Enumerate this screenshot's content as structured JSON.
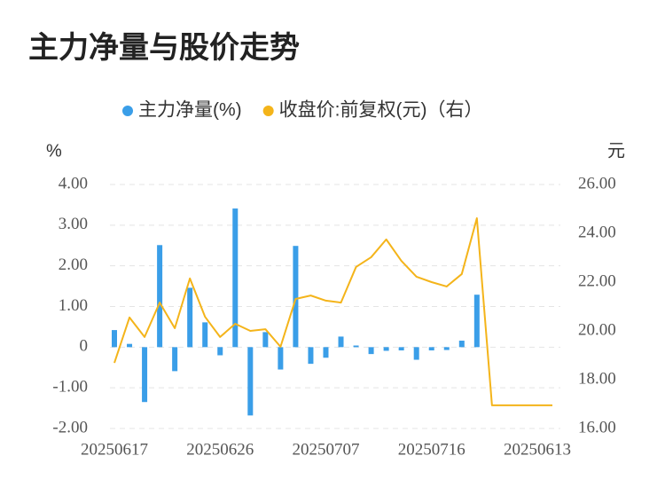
{
  "chart_data": {
    "type": "bar",
    "title": "主力净量与股价走势",
    "ylabel": "%",
    "y2label": "元",
    "categories": [
      "20250617",
      null,
      null,
      null,
      null,
      null,
      null,
      "20250626",
      null,
      null,
      null,
      null,
      null,
      null,
      "20250707",
      null,
      null,
      null,
      null,
      null,
      null,
      "20250716",
      null,
      null,
      null,
      null,
      null,
      null,
      "20250613",
      null
    ],
    "series": [
      {
        "name": "主力净量(%)",
        "type": "bar",
        "axis": "y",
        "color": "#3a9ee8",
        "values": [
          0.42,
          0.08,
          -1.35,
          2.51,
          -0.59,
          1.46,
          0.61,
          -0.2,
          3.41,
          -1.68,
          0.37,
          -0.55,
          2.49,
          -0.41,
          -0.26,
          0.26,
          0.04,
          -0.17,
          -0.09,
          -0.08,
          -0.31,
          -0.08,
          -0.07,
          0.16,
          1.29,
          null,
          null,
          null,
          null,
          null
        ]
      },
      {
        "name": "收盘价:前复权(元)（右）",
        "type": "line",
        "axis": "y2",
        "color": "#f4b41a",
        "values": [
          18.69,
          20.55,
          19.75,
          21.16,
          20.11,
          22.15,
          20.58,
          19.75,
          20.29,
          20.0,
          20.07,
          19.35,
          21.31,
          21.45,
          21.24,
          21.16,
          22.62,
          23.02,
          23.75,
          22.87,
          22.22,
          22.0,
          21.82,
          22.33,
          24.62,
          16.95,
          16.95,
          16.95,
          16.95,
          16.95
        ]
      }
    ],
    "ylim": [
      -2,
      4
    ],
    "yticks": [
      {
        "value": -2,
        "label": "-2.00"
      },
      {
        "value": -1,
        "label": "-1.00"
      },
      0,
      {
        "value": 1,
        "label": "1.00"
      },
      {
        "value": 2,
        "label": "2.00"
      },
      {
        "value": 3,
        "label": "3.00"
      },
      {
        "value": 4,
        "label": "4.00"
      }
    ],
    "y2lim": [
      16,
      26
    ],
    "y2ticks": [
      {
        "value": 16,
        "label": "16.00"
      },
      {
        "value": 18,
        "label": "18.00"
      },
      {
        "value": 20,
        "label": "20.00"
      },
      {
        "value": 22,
        "label": "22.00"
      },
      {
        "value": 24,
        "label": "24.00"
      },
      {
        "value": 26,
        "label": "26.00"
      }
    ],
    "grid": true
  }
}
